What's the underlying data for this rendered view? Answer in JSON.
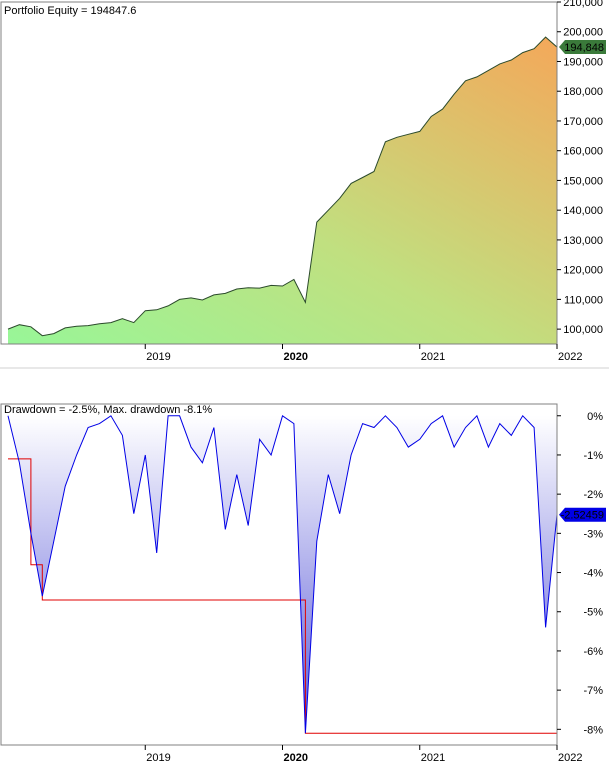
{
  "chart_data": [
    {
      "type": "area",
      "title": "Portfolio Equity = 194847.6",
      "xlabel": "",
      "ylabel": "",
      "x_ticks": [
        "2019",
        "2020",
        "2021",
        "2022"
      ],
      "x_ticks_bold": [
        "2020"
      ],
      "x_range": [
        "2018-01",
        "2022-01"
      ],
      "y_ticks": [
        100000,
        110000,
        120000,
        130000,
        140000,
        150000,
        160000,
        170000,
        180000,
        190000,
        200000,
        210000
      ],
      "y_tick_labels": [
        "100,000",
        "110,000",
        "120,000",
        "130,000",
        "140,000",
        "150,000",
        "160,000",
        "170,000",
        "180,000",
        "190,000",
        "200,000",
        "210,000"
      ],
      "ylim": [
        95000,
        210000
      ],
      "last_value_label": "194,848",
      "last_value": 194848,
      "colors": {
        "fill_low": "#98f698",
        "fill_high": "#f4a85a",
        "line": "#2b4a2b",
        "label_bg": "#3a7a3a",
        "label_text": "#ffffff"
      },
      "series": [
        {
          "x": [
            "2018-01",
            "2018-02",
            "2018-03",
            "2018-04",
            "2018-05",
            "2018-06",
            "2018-07",
            "2018-08",
            "2018-09",
            "2018-10",
            "2018-11",
            "2018-12",
            "2019-01",
            "2019-02",
            "2019-03",
            "2019-04",
            "2019-05",
            "2019-06",
            "2019-07",
            "2019-08",
            "2019-09",
            "2019-10",
            "2019-11",
            "2019-12",
            "2020-01",
            "2020-02",
            "2020-03",
            "2020-04",
            "2020-05",
            "2020-06",
            "2020-07",
            "2020-08",
            "2020-09",
            "2020-10",
            "2020-11",
            "2020-12",
            "2021-01",
            "2021-02",
            "2021-03",
            "2021-04",
            "2021-05",
            "2021-06",
            "2021-07",
            "2021-08",
            "2021-09",
            "2021-10",
            "2021-11",
            "2021-12",
            "2022-01"
          ],
          "values": [
            100000,
            101500,
            100800,
            97800,
            98500,
            100400,
            101000,
            101200,
            101800,
            102200,
            103500,
            102200,
            106200,
            106500,
            107800,
            110000,
            110500,
            109800,
            111500,
            112000,
            113500,
            113900,
            113800,
            114700,
            114500,
            116700,
            109000,
            136000,
            140000,
            144000,
            149000,
            151000,
            153000,
            163000,
            164500,
            165500,
            166500,
            171500,
            174000,
            179000,
            183500,
            184800,
            187000,
            189200,
            190500,
            193000,
            194300,
            198200,
            194848
          ]
        }
      ]
    },
    {
      "type": "area",
      "title": "Drawdown = -2.5%, Max. drawdown -8.1%",
      "xlabel": "",
      "ylabel": "",
      "x_ticks": [
        "2019",
        "2020",
        "2021",
        "2022"
      ],
      "x_ticks_bold": [
        "2020"
      ],
      "x_range": [
        "2018-01",
        "2022-01"
      ],
      "y_ticks": [
        0,
        -1,
        -2,
        -3,
        -4,
        -5,
        -6,
        -7,
        -8
      ],
      "y_tick_labels": [
        "0%",
        "-1%",
        "-2%",
        "-3%",
        "-4%",
        "-5%",
        "-6%",
        "-7%",
        "-8%"
      ],
      "ylim": [
        -8.4,
        0.3
      ],
      "last_value_label": "-2.52459",
      "last_value": -2.52459,
      "colors": {
        "fill_top": "#ffffff",
        "fill_bottom": "#5b5bd8",
        "line": "#0000e6",
        "max_line": "#e00000",
        "label_bg": "#0000e6",
        "label_text": "#ffffff"
      },
      "series": [
        {
          "name": "Drawdown",
          "x": [
            "2018-01",
            "2018-02",
            "2018-03",
            "2018-04",
            "2018-05",
            "2018-06",
            "2018-07",
            "2018-08",
            "2018-09",
            "2018-10",
            "2018-11",
            "2018-12",
            "2019-01",
            "2019-02",
            "2019-03",
            "2019-04",
            "2019-05",
            "2019-06",
            "2019-07",
            "2019-08",
            "2019-09",
            "2019-10",
            "2019-11",
            "2019-12",
            "2020-01",
            "2020-02",
            "2020-03",
            "2020-04",
            "2020-05",
            "2020-06",
            "2020-07",
            "2020-08",
            "2020-09",
            "2020-10",
            "2020-11",
            "2020-12",
            "2021-01",
            "2021-02",
            "2021-03",
            "2021-04",
            "2021-05",
            "2021-06",
            "2021-07",
            "2021-08",
            "2021-09",
            "2021-10",
            "2021-11",
            "2021-12",
            "2022-01"
          ],
          "values": [
            0,
            -1.2,
            -3.0,
            -4.6,
            -3.2,
            -1.8,
            -1.0,
            -0.3,
            -0.2,
            0,
            -0.5,
            -2.5,
            -1.0,
            -3.5,
            0,
            0,
            -0.8,
            -1.2,
            -0.3,
            -2.9,
            -1.5,
            -2.8,
            -0.6,
            -1.0,
            0,
            -0.2,
            -8.1,
            -3.2,
            -1.5,
            -2.5,
            -1.0,
            -0.2,
            -0.3,
            0,
            -0.3,
            -0.8,
            -0.6,
            -0.2,
            0,
            -0.8,
            -0.3,
            0,
            -0.8,
            -0.2,
            -0.5,
            0,
            -0.3,
            -5.4,
            -2.52459
          ]
        },
        {
          "name": "Max drawdown",
          "x": [
            "2018-01",
            "2018-03",
            "2018-03",
            "2018-04",
            "2018-04",
            "2020-03",
            "2020-03",
            "2022-01"
          ],
          "values": [
            -1.1,
            -1.1,
            -3.8,
            -3.8,
            -4.7,
            -4.7,
            -8.1,
            -8.1
          ]
        }
      ]
    }
  ]
}
